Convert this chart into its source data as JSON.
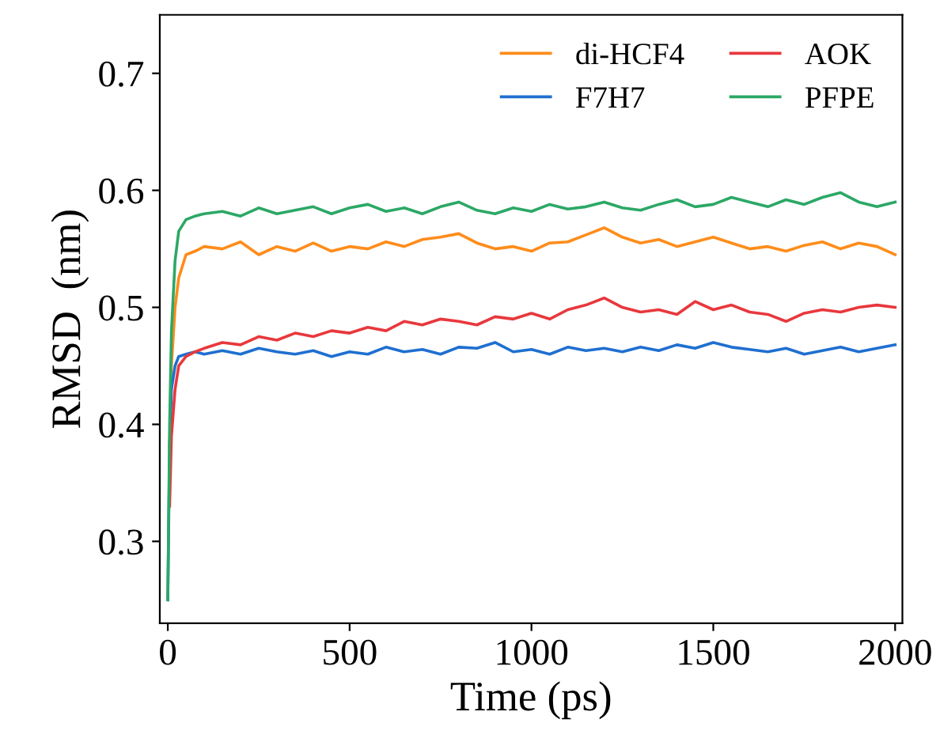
{
  "chart_data": {
    "type": "line",
    "xlabel": "Time (ps)",
    "ylabel": "RMSD  (nm)",
    "x": [
      0,
      5,
      10,
      20,
      30,
      50,
      75,
      100,
      150,
      200,
      250,
      300,
      350,
      400,
      450,
      500,
      550,
      600,
      650,
      700,
      750,
      800,
      850,
      900,
      950,
      1000,
      1050,
      1100,
      1150,
      1200,
      1250,
      1300,
      1350,
      1400,
      1450,
      1500,
      1550,
      1600,
      1650,
      1700,
      1750,
      1800,
      1850,
      1900,
      1950,
      2000
    ],
    "series": [
      {
        "name": "di-HCF4",
        "color": "#ff8c1a",
        "values": [
          null,
          0.38,
          0.45,
          0.5,
          0.525,
          0.545,
          0.548,
          0.552,
          0.55,
          0.556,
          0.545,
          0.552,
          0.548,
          0.555,
          0.548,
          0.552,
          0.55,
          0.556,
          0.552,
          0.558,
          0.56,
          0.563,
          0.555,
          0.55,
          0.552,
          0.548,
          0.555,
          0.556,
          0.562,
          0.568,
          0.56,
          0.555,
          0.558,
          0.552,
          0.556,
          0.56,
          0.555,
          0.55,
          0.552,
          0.548,
          0.553,
          0.556,
          0.55,
          0.555,
          0.552,
          0.545
        ]
      },
      {
        "name": "F7H7",
        "color": "#1f6fd0",
        "values": [
          0.25,
          0.38,
          0.43,
          0.45,
          0.458,
          0.46,
          0.462,
          0.46,
          0.463,
          0.46,
          0.465,
          0.462,
          0.46,
          0.463,
          0.458,
          0.462,
          0.46,
          0.466,
          0.462,
          0.464,
          0.46,
          0.466,
          0.465,
          0.47,
          0.462,
          0.464,
          0.46,
          0.466,
          0.463,
          0.465,
          0.462,
          0.466,
          0.463,
          0.468,
          0.465,
          0.47,
          0.466,
          0.464,
          0.462,
          0.465,
          0.46,
          0.463,
          0.466,
          0.462,
          0.465,
          0.468
        ]
      },
      {
        "name": "AOK",
        "color": "#e8383d",
        "values": [
          null,
          0.33,
          0.39,
          0.43,
          0.45,
          0.458,
          0.462,
          0.465,
          0.47,
          0.468,
          0.475,
          0.472,
          0.478,
          0.475,
          0.48,
          0.478,
          0.483,
          0.48,
          0.488,
          0.485,
          0.49,
          0.488,
          0.485,
          0.492,
          0.49,
          0.495,
          0.49,
          0.498,
          0.502,
          0.508,
          0.5,
          0.496,
          0.498,
          0.494,
          0.505,
          0.498,
          0.502,
          0.496,
          0.494,
          0.488,
          0.495,
          0.498,
          0.496,
          0.5,
          0.502,
          0.5
        ]
      },
      {
        "name": "PFPE",
        "color": "#2ca866",
        "values": [
          0.25,
          0.4,
          0.48,
          0.54,
          0.565,
          0.575,
          0.578,
          0.58,
          0.582,
          0.578,
          0.585,
          0.58,
          0.583,
          0.586,
          0.58,
          0.585,
          0.588,
          0.582,
          0.585,
          0.58,
          0.586,
          0.59,
          0.583,
          0.58,
          0.585,
          0.582,
          0.588,
          0.584,
          0.586,
          0.59,
          0.585,
          0.583,
          0.588,
          0.592,
          0.586,
          0.588,
          0.594,
          0.59,
          0.586,
          0.592,
          0.588,
          0.594,
          0.598,
          0.59,
          0.586,
          0.59
        ]
      }
    ],
    "xlim": [
      -22,
      2020
    ],
    "xticks": [
      0,
      500,
      1000,
      1500,
      2000
    ],
    "ylim": [
      0.23,
      0.75
    ],
    "yticks": [
      0.3,
      0.4,
      0.5,
      0.6,
      0.7
    ],
    "legend": "top right",
    "grid": false,
    "marker": "none",
    "line_style": "solid"
  }
}
